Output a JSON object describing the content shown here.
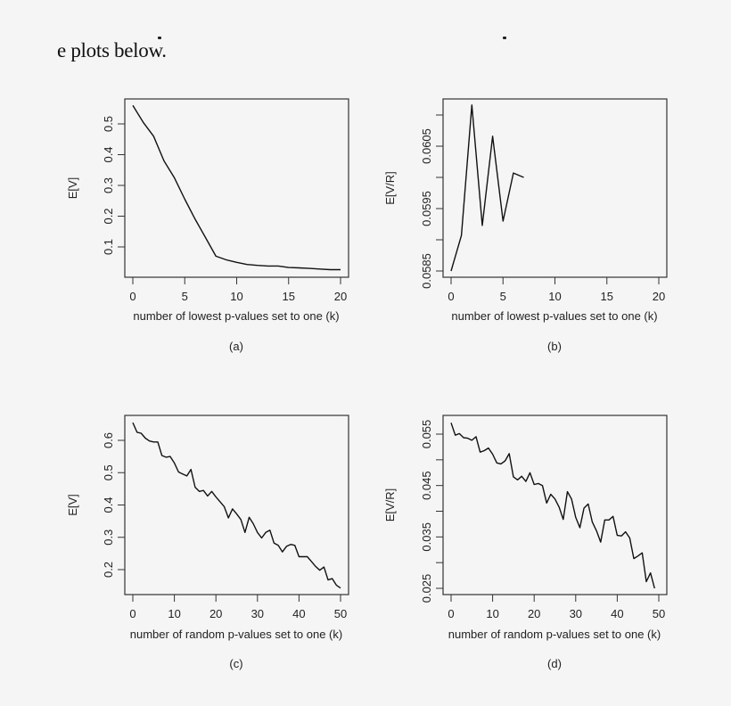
{
  "page": {
    "caption_fragment": "e plots below."
  },
  "chart_data": [
    {
      "id": "a",
      "type": "line",
      "panel_label": "(a)",
      "xlabel": "number of lowest p-values set to one (k)",
      "ylabel": "E[V]",
      "xlim": [
        0,
        20
      ],
      "ylim": [
        0.026,
        0.56
      ],
      "xticks": [
        0,
        5,
        10,
        15,
        20
      ],
      "yticks": [
        0.1,
        0.2,
        0.3,
        0.4,
        0.5
      ],
      "ytick_labels": [
        "0.1",
        "0.2",
        "0.3",
        "0.4",
        "0.5"
      ],
      "grid": false,
      "x": [
        0,
        1,
        2,
        3,
        4,
        5,
        6,
        7,
        8,
        9,
        10,
        11,
        12,
        13,
        14,
        15,
        16,
        17,
        18,
        19,
        20
      ],
      "values": [
        0.56,
        0.505,
        0.46,
        0.38,
        0.325,
        0.255,
        0.19,
        0.13,
        0.07,
        0.058,
        0.05,
        0.043,
        0.04,
        0.038,
        0.038,
        0.033,
        0.032,
        0.03,
        0.028,
        0.026,
        0.026
      ]
    },
    {
      "id": "b",
      "type": "line",
      "panel_label": "(b)",
      "xlabel": "number of lowest p-values set to one (k)",
      "ylabel": "E[V/R]",
      "xlim": [
        0,
        20
      ],
      "ylim": [
        0.0585,
        0.06116
      ],
      "xticks": [
        0,
        5,
        10,
        15,
        20
      ],
      "yticks": [
        0.0585,
        0.059,
        0.0595,
        0.06,
        0.0605,
        0.061
      ],
      "ytick_labels": [
        "0.0585",
        "",
        "0.0595",
        "",
        "0.0605",
        ""
      ],
      "grid": false,
      "x": [
        0,
        1,
        2,
        3,
        4,
        5,
        6,
        7
      ],
      "values": [
        0.0585,
        0.05907,
        0.06116,
        0.05923,
        0.06066,
        0.0593,
        0.06007,
        0.06
      ]
    },
    {
      "id": "c",
      "type": "line",
      "panel_label": "(c)",
      "xlabel": "number of random p-values set to one (k)",
      "ylabel": "E[V]",
      "xlim": [
        0,
        50
      ],
      "ylim": [
        0.143,
        0.655
      ],
      "xticks": [
        0,
        10,
        20,
        30,
        40,
        50
      ],
      "yticks": [
        0.2,
        0.3,
        0.4,
        0.5,
        0.6
      ],
      "ytick_labels": [
        "0.2",
        "0.3",
        "0.4",
        "0.5",
        "0.6"
      ],
      "grid": false,
      "x": [
        0,
        1,
        2,
        3,
        4,
        5,
        6,
        7,
        8,
        9,
        10,
        11,
        12,
        13,
        14,
        15,
        16,
        17,
        18,
        19,
        20,
        21,
        22,
        23,
        24,
        25,
        26,
        27,
        28,
        29,
        30,
        31,
        32,
        33,
        34,
        35,
        36,
        37,
        38,
        39,
        40,
        41,
        42,
        43,
        44,
        45,
        46,
        47,
        48,
        49,
        50
      ],
      "values": [
        0.655,
        0.625,
        0.622,
        0.607,
        0.598,
        0.595,
        0.595,
        0.553,
        0.548,
        0.55,
        0.53,
        0.502,
        0.496,
        0.49,
        0.51,
        0.455,
        0.442,
        0.445,
        0.428,
        0.442,
        0.425,
        0.41,
        0.395,
        0.36,
        0.388,
        0.372,
        0.355,
        0.315,
        0.362,
        0.342,
        0.315,
        0.298,
        0.315,
        0.322,
        0.282,
        0.275,
        0.255,
        0.272,
        0.278,
        0.275,
        0.24,
        0.24,
        0.24,
        0.225,
        0.21,
        0.198,
        0.208,
        0.168,
        0.172,
        0.152,
        0.143
      ]
    },
    {
      "id": "d",
      "type": "line",
      "panel_label": "(d)",
      "xlabel": "number of random p-values set to one (k)",
      "ylabel": "E[V/R]",
      "xlim": [
        0,
        50
      ],
      "ylim": [
        0.025,
        0.0572
      ],
      "xticks": [
        0,
        10,
        20,
        30,
        40,
        50
      ],
      "yticks": [
        0.025,
        0.03,
        0.035,
        0.04,
        0.045,
        0.05,
        0.055
      ],
      "ytick_labels": [
        "0.025",
        "",
        "0.035",
        "",
        "0.045",
        "",
        "0.055"
      ],
      "grid": false,
      "x": [
        0,
        1,
        2,
        3,
        4,
        5,
        6,
        7,
        8,
        9,
        10,
        11,
        12,
        13,
        14,
        15,
        16,
        17,
        18,
        19,
        20,
        21,
        22,
        23,
        24,
        25,
        26,
        27,
        28,
        29,
        30,
        31,
        32,
        33,
        34,
        35,
        36,
        37,
        38,
        39,
        40,
        41,
        42,
        43,
        44,
        45,
        46,
        47,
        48,
        49
      ],
      "values": [
        0.0572,
        0.0548,
        0.0551,
        0.0543,
        0.0542,
        0.0538,
        0.0545,
        0.0515,
        0.0518,
        0.0523,
        0.0511,
        0.0494,
        0.0492,
        0.0498,
        0.0512,
        0.0467,
        0.0461,
        0.0468,
        0.0458,
        0.0475,
        0.0452,
        0.0454,
        0.045,
        0.0416,
        0.0433,
        0.0424,
        0.0408,
        0.0384,
        0.0438,
        0.0424,
        0.0388,
        0.0368,
        0.0406,
        0.0414,
        0.0379,
        0.0362,
        0.034,
        0.0383,
        0.0383,
        0.039,
        0.0353,
        0.0352,
        0.036,
        0.0348,
        0.0308,
        0.0313,
        0.0319,
        0.0263,
        0.028,
        0.025
      ]
    }
  ]
}
